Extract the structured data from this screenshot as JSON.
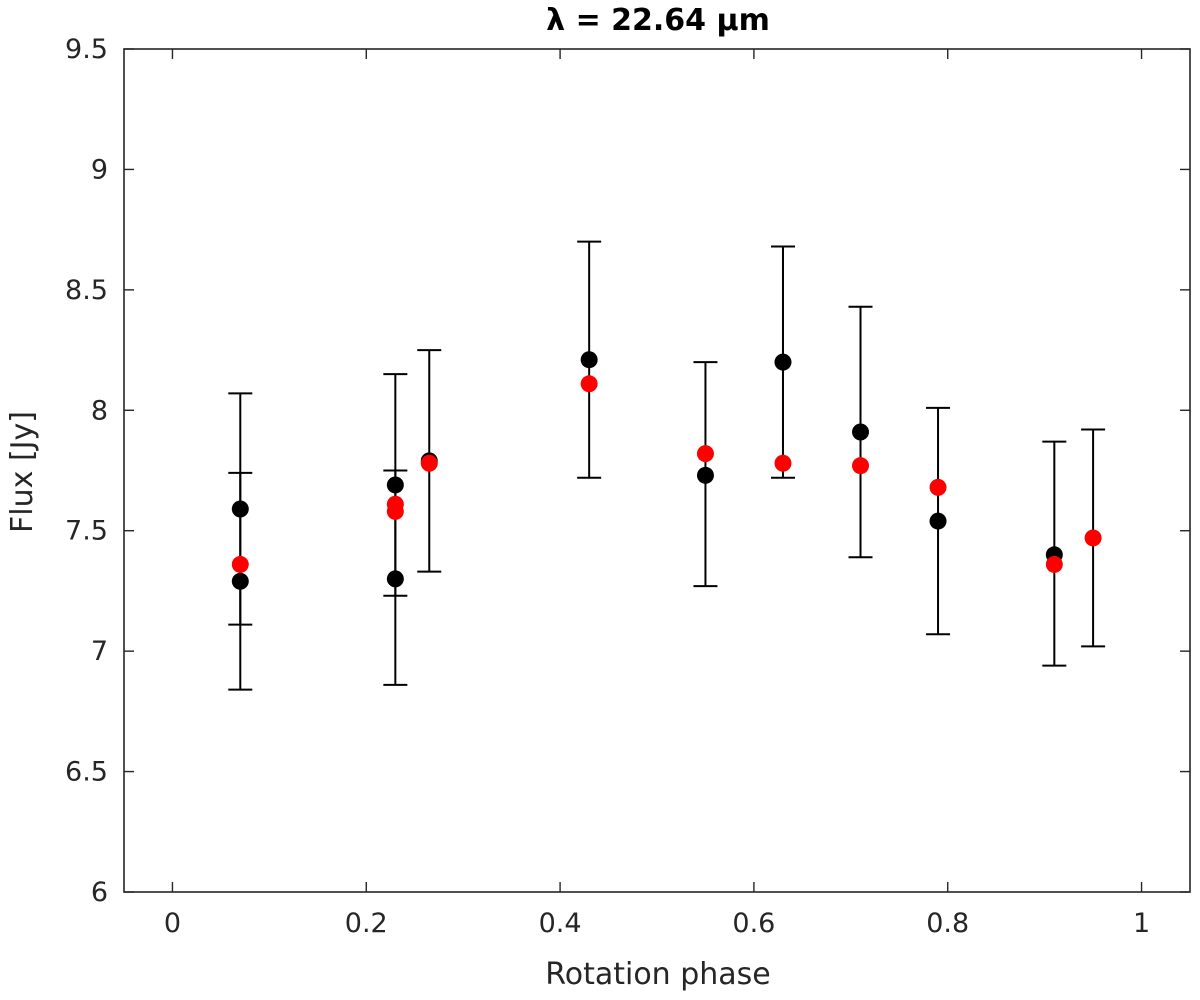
{
  "chart_data": {
    "type": "scatter",
    "title": "λ = 22.64 μm",
    "xlabel": "Rotation phase",
    "ylabel": "Flux [Jy]",
    "xlim": [
      -0.05,
      1.05
    ],
    "ylim": [
      6,
      9.5
    ],
    "xticks": [
      0,
      0.2,
      0.4,
      0.6,
      0.8,
      1
    ],
    "xtick_labels": [
      "0",
      "0.2",
      "0.4",
      "0.6",
      "0.8",
      "1"
    ],
    "yticks": [
      6,
      6.5,
      7,
      7.5,
      8,
      8.5,
      9,
      9.5
    ],
    "ytick_labels": [
      "6",
      "6.5",
      "7",
      "7.5",
      "8",
      "8.5",
      "9",
      "9.5"
    ],
    "grid": false,
    "errorbars": [
      {
        "x": 0.07,
        "low": 6.84,
        "high": 7.74
      },
      {
        "x": 0.07,
        "low": 7.11,
        "high": 8.07
      },
      {
        "x": 0.23,
        "low": 6.86,
        "high": 7.75
      },
      {
        "x": 0.23,
        "low": 7.23,
        "high": 8.15
      },
      {
        "x": 0.265,
        "low": 7.33,
        "high": 8.25
      },
      {
        "x": 0.43,
        "low": 7.72,
        "high": 8.7
      },
      {
        "x": 0.55,
        "low": 7.27,
        "high": 8.2
      },
      {
        "x": 0.63,
        "low": 7.72,
        "high": 8.68
      },
      {
        "x": 0.71,
        "low": 7.39,
        "high": 8.43
      },
      {
        "x": 0.79,
        "low": 7.07,
        "high": 8.01
      },
      {
        "x": 0.91,
        "low": 6.94,
        "high": 7.87
      },
      {
        "x": 0.95,
        "low": 7.02,
        "high": 7.92
      }
    ],
    "series": [
      {
        "color": "#000000",
        "points": [
          {
            "x": 0.07,
            "y": 7.59
          },
          {
            "x": 0.07,
            "y": 7.29
          },
          {
            "x": 0.23,
            "y": 7.69
          },
          {
            "x": 0.23,
            "y": 7.3
          },
          {
            "x": 0.265,
            "y": 7.79
          },
          {
            "x": 0.43,
            "y": 8.21
          },
          {
            "x": 0.55,
            "y": 7.73
          },
          {
            "x": 0.63,
            "y": 8.2
          },
          {
            "x": 0.71,
            "y": 7.91
          },
          {
            "x": 0.79,
            "y": 7.54
          },
          {
            "x": 0.91,
            "y": 7.4
          }
        ]
      },
      {
        "color": "#ff0000",
        "points": [
          {
            "x": 0.07,
            "y": 7.36
          },
          {
            "x": 0.23,
            "y": 7.61
          },
          {
            "x": 0.23,
            "y": 7.58
          },
          {
            "x": 0.265,
            "y": 7.78
          },
          {
            "x": 0.43,
            "y": 8.11
          },
          {
            "x": 0.55,
            "y": 7.82
          },
          {
            "x": 0.63,
            "y": 7.78
          },
          {
            "x": 0.71,
            "y": 7.77
          },
          {
            "x": 0.79,
            "y": 7.68
          },
          {
            "x": 0.91,
            "y": 7.36
          },
          {
            "x": 0.95,
            "y": 7.47
          }
        ]
      }
    ]
  }
}
